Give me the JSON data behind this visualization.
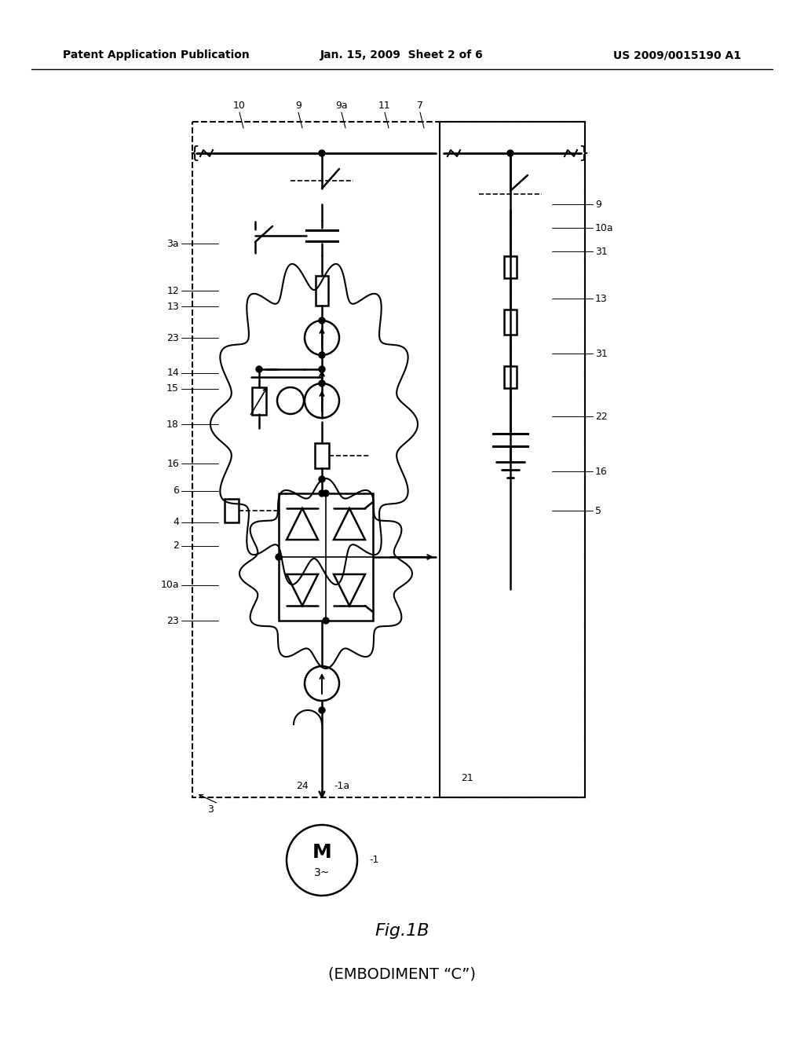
{
  "title": "Fig.1B",
  "subtitle": "(EMBODIMENT “C”)",
  "header_left": "Patent Application Publication",
  "header_center": "Jan. 15, 2009  Sheet 2 of 6",
  "header_right": "US 2009/0015190 A1",
  "bg_color": "#ffffff"
}
